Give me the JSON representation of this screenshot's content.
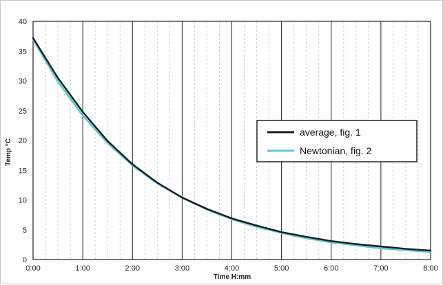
{
  "chart_data": {
    "type": "line",
    "xlabel": "Time H:mm",
    "ylabel": "Temp °C",
    "xlim": [
      0,
      8
    ],
    "ylim": [
      0,
      40
    ],
    "x_ticks": [
      "0:00",
      "1:00",
      "2:00",
      "3:00",
      "4:00",
      "5:00",
      "6:00",
      "7:00",
      "8:00"
    ],
    "y_ticks": [
      "0",
      "5",
      "10",
      "15",
      "20",
      "25",
      "30",
      "35",
      "40"
    ],
    "grid": {
      "major_vertical": true,
      "minor_vertical": true,
      "horizontal": false
    },
    "legend_position": "right",
    "x": [
      0,
      0.5,
      1,
      1.5,
      2,
      2.5,
      3,
      3.5,
      4,
      4.5,
      5,
      5.5,
      6,
      6.5,
      7,
      7.5,
      8
    ],
    "series": [
      {
        "name": "average, fig. 1",
        "color": "#1b1b1b",
        "values": [
          37.2,
          30.5,
          24.8,
          19.9,
          16.0,
          12.9,
          10.4,
          8.5,
          6.9,
          5.7,
          4.6,
          3.8,
          3.1,
          2.6,
          2.2,
          1.8,
          1.5
        ]
      },
      {
        "name": "Newtonian, fig. 2",
        "color": "#5bc8d6",
        "values": [
          37.0,
          29.9,
          24.2,
          19.6,
          15.8,
          12.8,
          10.4,
          8.4,
          6.8,
          5.5,
          4.5,
          3.6,
          2.9,
          2.4,
          1.9,
          1.6,
          1.3
        ]
      }
    ]
  }
}
